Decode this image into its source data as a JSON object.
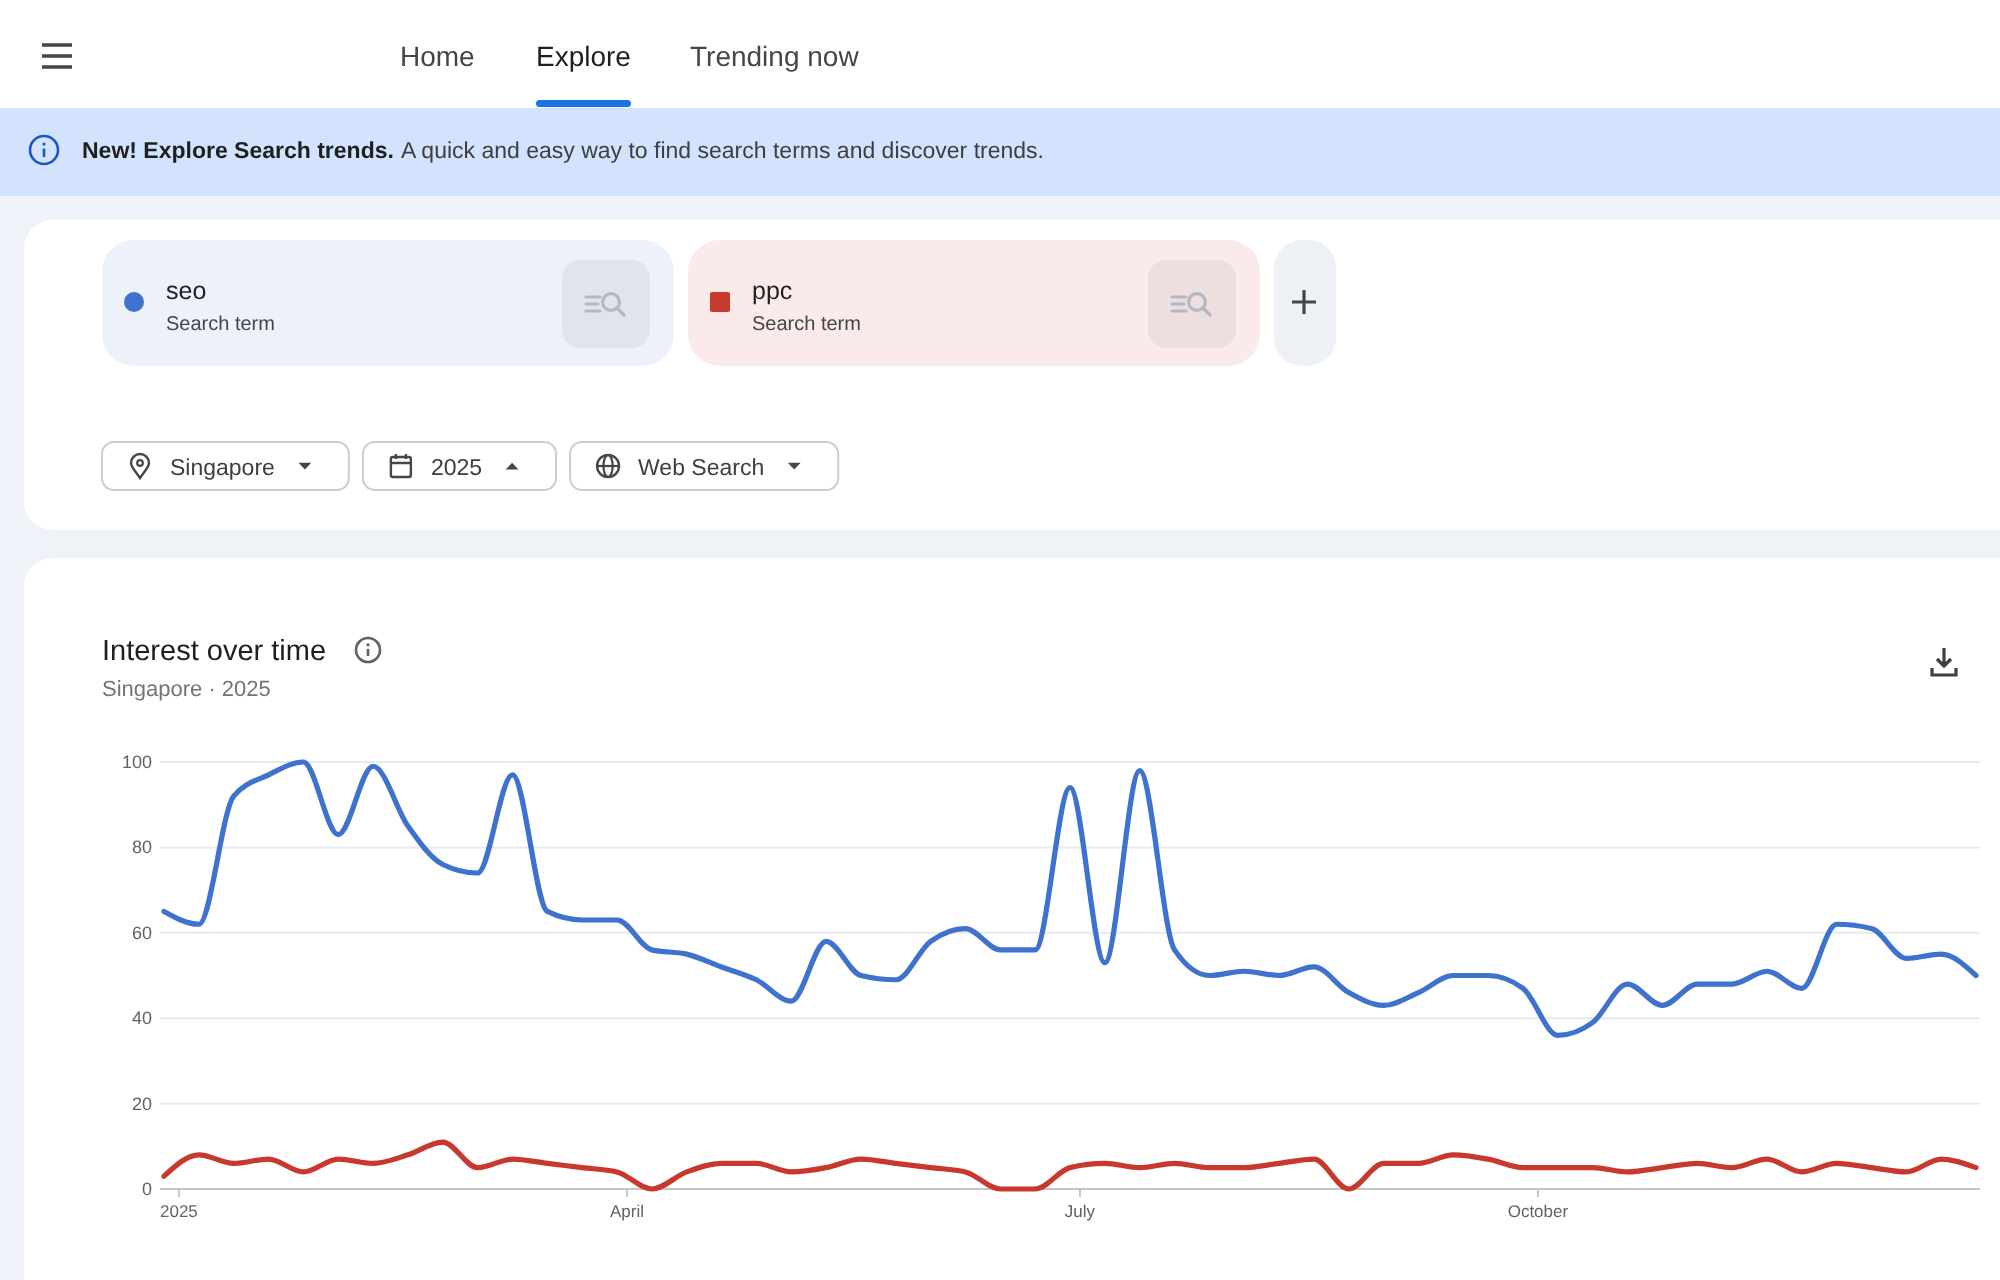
{
  "chart_data": [
    {
      "type": "other",
      "annotations": [
        "Home",
        "Explore",
        "Trending now",
        "New! Explore Search trends.",
        "A quick and easy way to find search terms and discover trends.",
        "Search term",
        "Search term",
        "Singapore",
        "2025",
        "Web Search"
      ]
    },
    {
      "type": "line",
      "title": "Interest over time",
      "subtitle": "Singapore · 2025",
      "x": [
        "2024-12-29",
        "2025-01-05",
        "2025-01-12",
        "2025-01-19",
        "2025-01-26",
        "2025-02-02",
        "2025-02-09",
        "2025-02-16",
        "2025-02-23",
        "2025-03-02",
        "2025-03-09",
        "2025-03-16",
        "2025-03-23",
        "2025-03-30",
        "2025-04-06",
        "2025-04-13",
        "2025-04-20",
        "2025-04-27",
        "2025-05-04",
        "2025-05-11",
        "2025-05-18",
        "2025-05-25",
        "2025-06-01",
        "2025-06-08",
        "2025-06-15",
        "2025-06-22",
        "2025-06-29",
        "2025-07-06",
        "2025-07-13",
        "2025-07-20",
        "2025-07-27",
        "2025-08-03",
        "2025-08-10",
        "2025-08-17",
        "2025-08-24",
        "2025-08-31",
        "2025-09-07",
        "2025-09-14",
        "2025-09-21",
        "2025-09-28",
        "2025-10-05",
        "2025-10-12",
        "2025-10-19",
        "2025-10-26",
        "2025-11-02",
        "2025-11-09",
        "2025-11-16",
        "2025-11-23",
        "2025-11-30",
        "2025-12-07",
        "2025-12-14",
        "2025-12-21",
        "2025-12-28"
      ],
      "xlim": [
        "2024-12-29",
        "2025-12-28"
      ],
      "xticks": [
        {
          "value": "2025-01-01",
          "label": "2025"
        },
        {
          "value": "2025-04-01",
          "label": "April"
        },
        {
          "value": "2025-07-01",
          "label": "July"
        },
        {
          "value": "2025-10-01",
          "label": "October"
        }
      ],
      "ylim": [
        0,
        100
      ],
      "yticks": [
        0,
        20,
        40,
        60,
        80,
        100
      ],
      "grid": "y",
      "legend": "top",
      "series": [
        {
          "name": "seo",
          "color": "#3e72ce",
          "values": [
            65,
            62,
            92,
            97,
            100,
            83,
            99,
            85,
            76,
            74,
            97,
            65,
            63,
            63,
            56,
            55,
            52,
            49,
            44,
            58,
            50,
            49,
            58,
            61,
            56,
            56,
            94,
            53,
            98,
            56,
            50,
            51,
            50,
            52,
            46,
            43,
            46,
            50,
            50,
            47,
            36,
            39,
            48,
            43,
            48,
            48,
            51,
            47,
            62,
            61,
            54,
            55,
            50
          ]
        },
        {
          "name": "ppc",
          "color": "#c8382d",
          "values": [
            3,
            8,
            6,
            7,
            4,
            7,
            6,
            8,
            11,
            5,
            7,
            6,
            5,
            4,
            0,
            4,
            6,
            6,
            4,
            5,
            7,
            6,
            5,
            4,
            0,
            0,
            5,
            6,
            5,
            6,
            5,
            5,
            6,
            7,
            0,
            6,
            6,
            8,
            7,
            5,
            5,
            5,
            4,
            5,
            6,
            5,
            7,
            4,
            6,
            5,
            4,
            7,
            5
          ]
        }
      ]
    }
  ]
}
